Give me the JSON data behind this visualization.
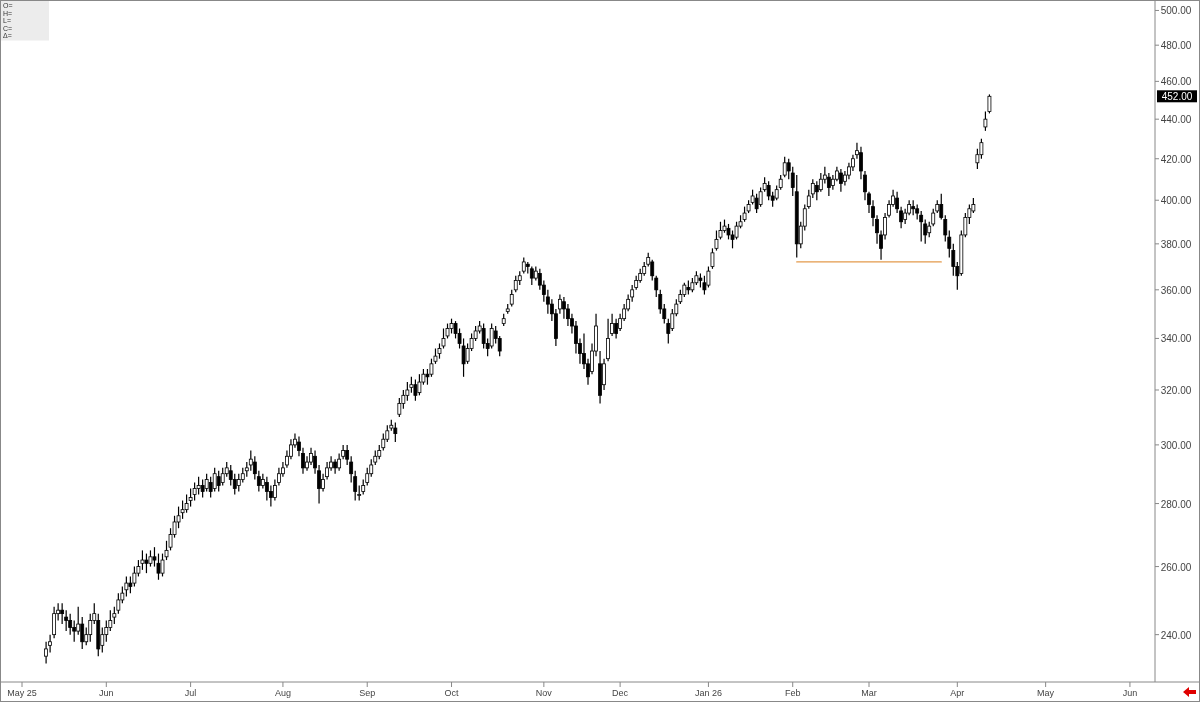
{
  "chart_data": {
    "type": "candlestick",
    "log": "y",
    "grid": false,
    "categories": [
      "May 25",
      null,
      null,
      null,
      null,
      null,
      null,
      null,
      null,
      null,
      null,
      null,
      null,
      null,
      null,
      null,
      null,
      null,
      null,
      null,
      null,
      "Jun",
      null,
      null,
      null,
      null,
      null,
      null,
      null,
      null,
      null,
      null,
      null,
      null,
      null,
      null,
      null,
      null,
      null,
      null,
      null,
      null,
      "Jul",
      null,
      null,
      null,
      null,
      null,
      null,
      null,
      null,
      null,
      null,
      null,
      null,
      null,
      null,
      null,
      null,
      null,
      null,
      null,
      null,
      null,
      null,
      "Aug",
      null,
      null,
      null,
      null,
      null,
      null,
      null,
      null,
      null,
      null,
      null,
      null,
      null,
      null,
      null,
      null,
      null,
      null,
      null,
      null,
      "Sep",
      null,
      null,
      null,
      null,
      null,
      null,
      null,
      null,
      null,
      null,
      null,
      null,
      null,
      null,
      null,
      null,
      null,
      null,
      null,
      null,
      "Oct",
      null,
      null,
      null,
      null,
      null,
      null,
      null,
      null,
      null,
      null,
      null,
      null,
      null,
      null,
      null,
      null,
      null,
      null,
      null,
      null,
      null,
      null,
      "Nov",
      null,
      null,
      null,
      null,
      null,
      null,
      null,
      null,
      null,
      null,
      null,
      null,
      null,
      null,
      null,
      null,
      null,
      null,
      "Dec",
      null,
      null,
      null,
      null,
      null,
      null,
      null,
      null,
      null,
      null,
      null,
      null,
      null,
      null,
      null,
      null,
      null,
      null,
      null,
      null,
      null,
      "Jan 26",
      null,
      null,
      null,
      null,
      null,
      null,
      null,
      null,
      null,
      null,
      null,
      null,
      null,
      null,
      null,
      null,
      null,
      null,
      null,
      null,
      "Feb",
      null,
      null,
      null,
      null,
      null,
      null,
      null,
      null,
      null,
      null,
      null,
      null,
      null,
      null,
      null,
      null,
      null,
      null,
      "Mar",
      null,
      null,
      null,
      null,
      null,
      null,
      null,
      null,
      null,
      null,
      null,
      null,
      null,
      null,
      null,
      null,
      null,
      null,
      null,
      null,
      null,
      "Apr",
      null,
      null,
      null,
      null,
      null,
      null,
      null,
      null,
      null,
      null,
      null,
      null,
      null,
      null,
      null,
      null,
      null,
      null,
      null,
      null,
      null,
      "May",
      null,
      null,
      null,
      null,
      null,
      null,
      null,
      null,
      null,
      null,
      null,
      null,
      null,
      null,
      null,
      null,
      null,
      null,
      null,
      null,
      "Jun",
      null,
      null,
      null,
      null,
      null
    ],
    "ylim": [
      227,
      505
    ],
    "yticks": [
      {
        "value": 240,
        "label": "240.00"
      },
      {
        "value": 260,
        "label": "260.00"
      },
      {
        "value": 280,
        "label": "280.00"
      },
      {
        "value": 300,
        "label": "300.00"
      },
      {
        "value": 320,
        "label": "320.00"
      },
      {
        "value": 340,
        "label": "340.00"
      },
      {
        "value": 360,
        "label": "360.00"
      },
      {
        "value": 380,
        "label": "380.00"
      },
      {
        "value": 400,
        "label": "400.00"
      },
      {
        "value": 420,
        "label": "420.00"
      },
      {
        "value": 440,
        "label": "440.00"
      },
      {
        "value": 460,
        "label": "460.00"
      },
      {
        "value": 480,
        "label": "480.00"
      },
      {
        "value": 500,
        "label": "500.00"
      }
    ],
    "annotations": [
      "O=",
      "H=",
      "L=",
      "C=",
      "Δ=",
      "452.00"
    ],
    "ohlc": [
      null,
      null,
      null,
      null,
      null,
      null,
      [
        234,
        238,
        232,
        236
      ],
      [
        237,
        240,
        235,
        238
      ],
      [
        240,
        248,
        239,
        246
      ],
      [
        246,
        249,
        244,
        247
      ],
      [
        247,
        249,
        243,
        246
      ],
      [
        245,
        247,
        241,
        244
      ],
      [
        244,
        246,
        240,
        242
      ],
      [
        242,
        244,
        238,
        241
      ],
      [
        241,
        248,
        240,
        243
      ],
      [
        243,
        245,
        236,
        238
      ],
      [
        238,
        242,
        237,
        240
      ],
      [
        240,
        246,
        238,
        244
      ],
      [
        244,
        249,
        243,
        246
      ],
      [
        244,
        246,
        234,
        236
      ],
      [
        237,
        242,
        235,
        240
      ],
      [
        240,
        244,
        238,
        242
      ],
      [
        242,
        247,
        241,
        244
      ],
      [
        245,
        248,
        243,
        246
      ],
      [
        247,
        252,
        246,
        250
      ],
      [
        250,
        254,
        249,
        252
      ],
      [
        253,
        257,
        251,
        255
      ],
      [
        255,
        257,
        252,
        254
      ],
      [
        255,
        260,
        254,
        258
      ],
      [
        258,
        262,
        257,
        260
      ],
      [
        261,
        265,
        259,
        262
      ],
      [
        262,
        264,
        258,
        261
      ],
      [
        261,
        265,
        260,
        263
      ],
      [
        263,
        266,
        260,
        262
      ],
      [
        261,
        264,
        256,
        258
      ],
      [
        258,
        264,
        257,
        262
      ],
      [
        263,
        268,
        262,
        265
      ],
      [
        266,
        272,
        265,
        270
      ],
      [
        270,
        276,
        269,
        274
      ],
      [
        274,
        279,
        272,
        276
      ],
      [
        277,
        281,
        275,
        278
      ],
      [
        278,
        283,
        277,
        280
      ],
      [
        281,
        285,
        279,
        282
      ],
      [
        283,
        287,
        281,
        285
      ],
      [
        285,
        289,
        283,
        286
      ],
      [
        286,
        288,
        282,
        284
      ],
      [
        285,
        290,
        284,
        288
      ],
      [
        287,
        289,
        282,
        284
      ],
      [
        285,
        292,
        284,
        290
      ],
      [
        289,
        291,
        284,
        286
      ],
      [
        287,
        292,
        286,
        290
      ],
      [
        290,
        294,
        289,
        292
      ],
      [
        291,
        293,
        286,
        288
      ],
      [
        288,
        290,
        283,
        285
      ],
      [
        286,
        290,
        284,
        288
      ],
      [
        288,
        292,
        287,
        290
      ],
      [
        291,
        294,
        289,
        292
      ],
      [
        293,
        298,
        291,
        295
      ],
      [
        294,
        296,
        288,
        290
      ],
      [
        289,
        291,
        284,
        286
      ],
      [
        286,
        290,
        285,
        288
      ],
      [
        287,
        289,
        281,
        284
      ],
      [
        284,
        286,
        279,
        282
      ],
      [
        282,
        288,
        281,
        286
      ],
      [
        287,
        292,
        286,
        290
      ],
      [
        290,
        294,
        289,
        292
      ],
      [
        293,
        298,
        292,
        296
      ],
      [
        296,
        302,
        295,
        300
      ],
      [
        300,
        304,
        299,
        302
      ],
      [
        301,
        303,
        296,
        298
      ],
      [
        297,
        299,
        290,
        292
      ],
      [
        292,
        296,
        291,
        294
      ],
      [
        294,
        299,
        293,
        297
      ],
      [
        296,
        298,
        290,
        292
      ],
      [
        291,
        293,
        280,
        285
      ],
      [
        285,
        290,
        284,
        288
      ],
      [
        289,
        294,
        288,
        292
      ],
      [
        292,
        296,
        291,
        294
      ],
      [
        294,
        295,
        290,
        292
      ],
      [
        292,
        297,
        291,
        295
      ],
      [
        296,
        300,
        295,
        298
      ],
      [
        298,
        300,
        293,
        295
      ],
      [
        294,
        296,
        287,
        290
      ],
      [
        289,
        291,
        281,
        284
      ],
      [
        283,
        286,
        281,
        283
      ],
      [
        284,
        288,
        283,
        286
      ],
      [
        287,
        292,
        286,
        290
      ],
      [
        290,
        295,
        289,
        293
      ],
      [
        294,
        298,
        293,
        296
      ],
      [
        296,
        300,
        295,
        298
      ],
      [
        299,
        304,
        298,
        302
      ],
      [
        302,
        307,
        301,
        305
      ],
      [
        306,
        309,
        305,
        307
      ],
      [
        306,
        308,
        301,
        304
      ],
      [
        311,
        317,
        310,
        315
      ],
      [
        315,
        320,
        313,
        318
      ],
      [
        318,
        323,
        316,
        320
      ],
      [
        321,
        325,
        319,
        322
      ],
      [
        322,
        324,
        316,
        318
      ],
      [
        319,
        326,
        318,
        323
      ],
      [
        323,
        328,
        322,
        326
      ],
      [
        326,
        328,
        322,
        325
      ],
      [
        326,
        332,
        325,
        330
      ],
      [
        331,
        336,
        330,
        333
      ],
      [
        334,
        338,
        332,
        336
      ],
      [
        337,
        344,
        336,
        340
      ],
      [
        341,
        346,
        340,
        344
      ],
      [
        344,
        348,
        342,
        346
      ],
      [
        346,
        347,
        340,
        342
      ],
      [
        342,
        344,
        336,
        338
      ],
      [
        337,
        340,
        325,
        330
      ],
      [
        331,
        338,
        330,
        336
      ],
      [
        336,
        342,
        335,
        340
      ],
      [
        340,
        345,
        339,
        343
      ],
      [
        343,
        347,
        342,
        345
      ],
      [
        344,
        346,
        336,
        338
      ],
      [
        338,
        340,
        333,
        336
      ],
      [
        337,
        346,
        336,
        344
      ],
      [
        343,
        345,
        338,
        340
      ],
      [
        340,
        341,
        333,
        335
      ],
      [
        346,
        350,
        345,
        348
      ],
      [
        351,
        354,
        350,
        352
      ],
      [
        354,
        360,
        353,
        358
      ],
      [
        360,
        366,
        359,
        364
      ],
      [
        364,
        368,
        362,
        366
      ],
      [
        368,
        374,
        367,
        372
      ],
      [
        371,
        372,
        367,
        370
      ],
      [
        369,
        370,
        362,
        365
      ],
      [
        365,
        370,
        364,
        368
      ],
      [
        367,
        369,
        360,
        362
      ],
      [
        362,
        364,
        355,
        358
      ],
      [
        357,
        360,
        350,
        354
      ],
      [
        354,
        356,
        347,
        350
      ],
      [
        350,
        352,
        337,
        340
      ],
      [
        352,
        358,
        350,
        356
      ],
      [
        355,
        357,
        348,
        352
      ],
      [
        352,
        354,
        345,
        348
      ],
      [
        348,
        350,
        342,
        345
      ],
      [
        345,
        347,
        334,
        338
      ],
      [
        338,
        340,
        330,
        334
      ],
      [
        334,
        342,
        328,
        330
      ],
      [
        330,
        332,
        322,
        325
      ],
      [
        327,
        338,
        326,
        335
      ],
      [
        335,
        350,
        333,
        345
      ],
      [
        330,
        335,
        315,
        318
      ],
      [
        322,
        332,
        320,
        330
      ],
      [
        332,
        348,
        331,
        340
      ],
      [
        342,
        350,
        341,
        346
      ],
      [
        346,
        348,
        340,
        342
      ],
      [
        344,
        350,
        343,
        348
      ],
      [
        348,
        354,
        347,
        352
      ],
      [
        352,
        358,
        351,
        356
      ],
      [
        357,
        362,
        355,
        360
      ],
      [
        361,
        366,
        360,
        364
      ],
      [
        364,
        369,
        363,
        367
      ],
      [
        367,
        372,
        366,
        370
      ],
      [
        371,
        376,
        370,
        374
      ],
      [
        372,
        373,
        364,
        366
      ],
      [
        365,
        366,
        357,
        360
      ],
      [
        358,
        360,
        350,
        352
      ],
      [
        352,
        354,
        346,
        348
      ],
      [
        346,
        348,
        338,
        342
      ],
      [
        344,
        352,
        343,
        350
      ],
      [
        350,
        356,
        349,
        354
      ],
      [
        355,
        360,
        354,
        358
      ],
      [
        358,
        363,
        357,
        362
      ],
      [
        361,
        364,
        358,
        360
      ],
      [
        360,
        365,
        359,
        363
      ],
      [
        363,
        368,
        362,
        366
      ],
      [
        365,
        367,
        361,
        364
      ],
      [
        363,
        366,
        358,
        360
      ],
      [
        362,
        370,
        361,
        368
      ],
      [
        370,
        378,
        369,
        376
      ],
      [
        378,
        386,
        377,
        382
      ],
      [
        383,
        390,
        382,
        386
      ],
      [
        386,
        391,
        385,
        388
      ],
      [
        387,
        389,
        382,
        384
      ],
      [
        384,
        386,
        378,
        382
      ],
      [
        383,
        390,
        382,
        388
      ],
      [
        388,
        393,
        387,
        390
      ],
      [
        391,
        397,
        390,
        394
      ],
      [
        395,
        400,
        394,
        398
      ],
      [
        399,
        405,
        398,
        402
      ],
      [
        401,
        403,
        394,
        396
      ],
      [
        398,
        406,
        397,
        404
      ],
      [
        405,
        411,
        404,
        408
      ],
      [
        407,
        409,
        400,
        402
      ],
      [
        402,
        404,
        397,
        400
      ],
      [
        401,
        407,
        400,
        405
      ],
      [
        406,
        412,
        405,
        410
      ],
      [
        412,
        421,
        411,
        418
      ],
      [
        418,
        420,
        410,
        414
      ],
      [
        413,
        416,
        402,
        406
      ],
      [
        404,
        412,
        374,
        380
      ],
      [
        380,
        390,
        378,
        388
      ],
      [
        388,
        398,
        386,
        396
      ],
      [
        397,
        405,
        396,
        402
      ],
      [
        403,
        410,
        401,
        408
      ],
      [
        407,
        409,
        400,
        404
      ],
      [
        405,
        413,
        404,
        410
      ],
      [
        410,
        416,
        408,
        412
      ],
      [
        411,
        413,
        402,
        406
      ],
      [
        407,
        412,
        405,
        410
      ],
      [
        410,
        416,
        409,
        414
      ],
      [
        413,
        415,
        404,
        408
      ],
      [
        409,
        414,
        407,
        412
      ],
      [
        412,
        418,
        410,
        416
      ],
      [
        416,
        422,
        414,
        420
      ],
      [
        422,
        428,
        420,
        424
      ],
      [
        423,
        426,
        410,
        414
      ],
      [
        412,
        414,
        400,
        404
      ],
      [
        403,
        404,
        394,
        398
      ],
      [
        397,
        400,
        388,
        392
      ],
      [
        391,
        393,
        380,
        385
      ],
      [
        384,
        386,
        373,
        378
      ],
      [
        384,
        394,
        382,
        392
      ],
      [
        393,
        400,
        392,
        398
      ],
      [
        398,
        405,
        397,
        402
      ],
      [
        401,
        404,
        394,
        396
      ],
      [
        395,
        397,
        387,
        390
      ],
      [
        391,
        396,
        389,
        394
      ],
      [
        394,
        400,
        393,
        398
      ],
      [
        397,
        400,
        393,
        396
      ],
      [
        396,
        398,
        391,
        394
      ],
      [
        393,
        395,
        381,
        390
      ],
      [
        389,
        391,
        380,
        384
      ],
      [
        385,
        390,
        383,
        388
      ],
      [
        389,
        396,
        388,
        394
      ],
      [
        395,
        400,
        394,
        398
      ],
      [
        398,
        403,
        391,
        392
      ],
      [
        391,
        393,
        381,
        384
      ],
      [
        383,
        386,
        374,
        378
      ],
      [
        377,
        380,
        366,
        370
      ],
      [
        370,
        372,
        360,
        366
      ],
      [
        367,
        386,
        366,
        384
      ],
      [
        384,
        394,
        383,
        392
      ],
      [
        392,
        398,
        389,
        396
      ],
      [
        395,
        401,
        394,
        398
      ],
      [
        418,
        425,
        415,
        422
      ],
      [
        422,
        430,
        420,
        428
      ],
      [
        436,
        444,
        434,
        440
      ],
      [
        444,
        453,
        443,
        452
      ],
      null,
      null,
      null,
      null,
      null,
      null,
      null,
      null,
      null,
      null,
      null,
      null,
      null,
      null,
      null,
      null,
      null,
      null,
      null,
      null,
      null,
      null,
      null,
      null,
      null,
      null,
      null,
      null,
      null,
      null,
      null,
      null,
      null,
      null,
      null,
      null,
      null,
      null,
      null,
      null
    ],
    "series": [
      {
        "type": "line",
        "color": "#e39a4c",
        "values": [
          null,
          null,
          null,
          null,
          null,
          null,
          null,
          null,
          null,
          null,
          null,
          null,
          null,
          null,
          null,
          null,
          null,
          null,
          null,
          null,
          null,
          null,
          null,
          null,
          null,
          null,
          null,
          null,
          null,
          null,
          null,
          null,
          null,
          null,
          null,
          null,
          null,
          null,
          null,
          null,
          null,
          null,
          null,
          null,
          null,
          null,
          null,
          null,
          null,
          null,
          null,
          null,
          null,
          null,
          null,
          null,
          null,
          null,
          null,
          null,
          null,
          null,
          null,
          null,
          null,
          null,
          null,
          null,
          null,
          null,
          null,
          null,
          null,
          null,
          null,
          null,
          null,
          null,
          null,
          null,
          null,
          null,
          null,
          null,
          null,
          null,
          null,
          null,
          null,
          null,
          null,
          null,
          null,
          null,
          null,
          null,
          null,
          null,
          null,
          null,
          null,
          null,
          null,
          null,
          null,
          null,
          null,
          null,
          null,
          null,
          null,
          null,
          null,
          null,
          null,
          null,
          null,
          null,
          null,
          null,
          null,
          null,
          null,
          null,
          null,
          null,
          null,
          null,
          null,
          null,
          null,
          null,
          null,
          null,
          null,
          null,
          null,
          null,
          null,
          null,
          null,
          null,
          null,
          null,
          null,
          null,
          null,
          null,
          null,
          null,
          null,
          null,
          null,
          null,
          null,
          null,
          null,
          null,
          null,
          null,
          null,
          null,
          null,
          null,
          null,
          null,
          null,
          null,
          null,
          null,
          null,
          null,
          null,
          null,
          null,
          null,
          null,
          null,
          null,
          null,
          null,
          null,
          null,
          null,
          null,
          null,
          null,
          null,
          null,
          null,
          null,
          null,
          null,
          372,
          372,
          372,
          372,
          372,
          372,
          372,
          372,
          372,
          372,
          372,
          372,
          372,
          372,
          372,
          372,
          372,
          372,
          372,
          372,
          372,
          372,
          372,
          372,
          372,
          372,
          372,
          372,
          372,
          372,
          372,
          372,
          372,
          372,
          372,
          372,
          372,
          null,
          null,
          null,
          null,
          null,
          null,
          null,
          null,
          null,
          null,
          null,
          null,
          null,
          null,
          null,
          null,
          null,
          null,
          null,
          null,
          null,
          null,
          null,
          null,
          null,
          null,
          null,
          null,
          null,
          null,
          null,
          null,
          null,
          null,
          null,
          null,
          null,
          null,
          null,
          null,
          null,
          null,
          null,
          null,
          null,
          null,
          null,
          null,
          null,
          null,
          null,
          null
        ]
      }
    ]
  }
}
